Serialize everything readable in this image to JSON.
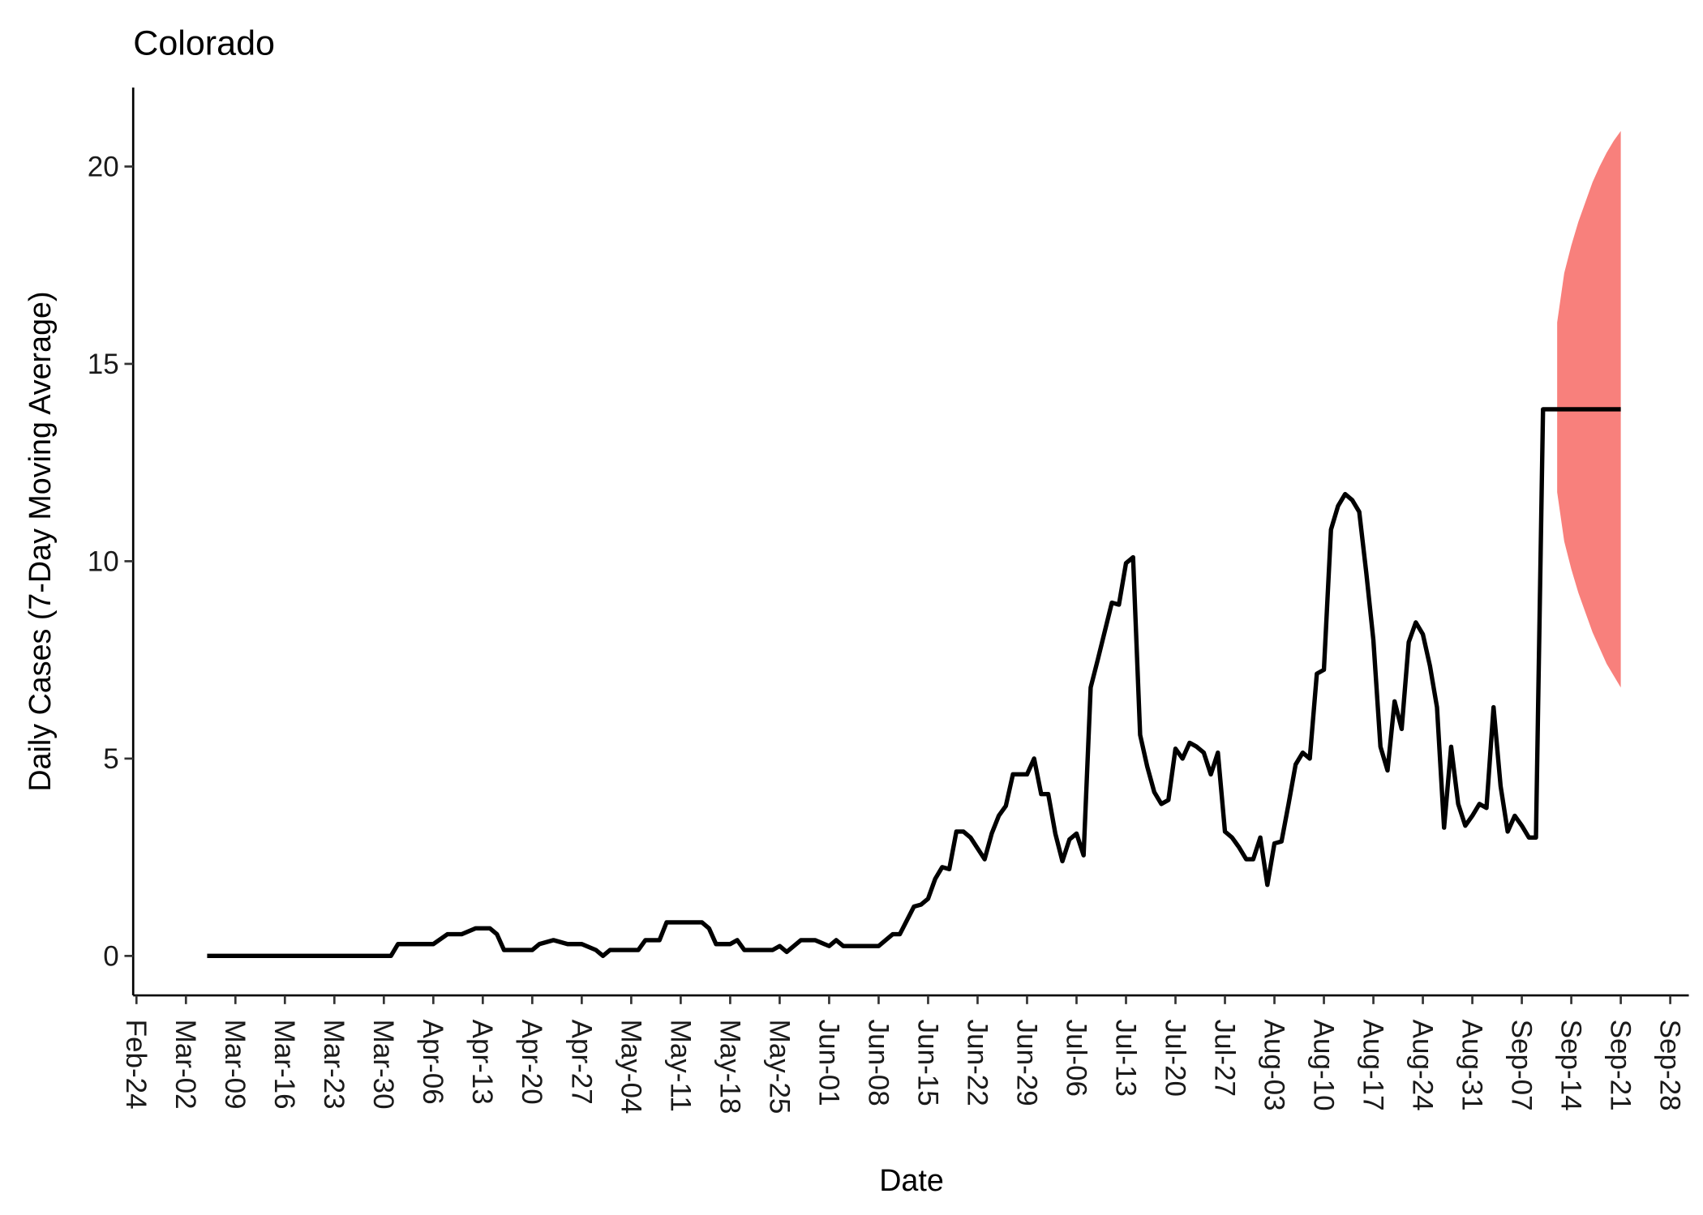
{
  "chart_data": {
    "type": "line",
    "title": "Colorado",
    "xlabel": "Date",
    "ylabel": "Daily Cases (7-Day Moving Average)",
    "xticks": [
      "Feb-24",
      "Mar-02",
      "Mar-09",
      "Mar-16",
      "Mar-23",
      "Mar-30",
      "Apr-06",
      "Apr-13",
      "Apr-20",
      "Apr-27",
      "May-04",
      "May-11",
      "May-18",
      "May-25",
      "Jun-01",
      "Jun-08",
      "Jun-15",
      "Jun-22",
      "Jun-29",
      "Jul-06",
      "Jul-13",
      "Jul-20",
      "Jul-27",
      "Aug-03",
      "Aug-10",
      "Aug-17",
      "Aug-24",
      "Aug-31",
      "Sep-07",
      "Sep-14",
      "Sep-21",
      "Sep-28"
    ],
    "xlim": [
      "Feb-24",
      "Sep-28"
    ],
    "ylim": [
      -1,
      22
    ],
    "yticks": [
      0,
      5,
      10,
      15,
      20
    ],
    "grid": false,
    "series": [
      {
        "color": "#000000",
        "x": [
          "Mar-05",
          "Mar-31",
          "Apr-01",
          "Apr-06",
          "Apr-08",
          "Apr-10",
          "Apr-12",
          "Apr-14",
          "Apr-15",
          "Apr-16",
          "Apr-20",
          "Apr-21",
          "Apr-23",
          "Apr-25",
          "Apr-27",
          "Apr-29",
          "Apr-30",
          "May-01",
          "May-05",
          "May-06",
          "May-08",
          "May-09",
          "May-14",
          "May-15",
          "May-16",
          "May-18",
          "May-19",
          "May-20",
          "May-24",
          "May-25",
          "May-26",
          "May-28",
          "May-30",
          "Jun-01",
          "Jun-02",
          "Jun-03",
          "Jun-08",
          "Jun-10",
          "Jun-11",
          "Jun-12",
          "Jun-13",
          "Jun-14",
          "Jun-15",
          "Jun-16",
          "Jun-17",
          "Jun-18",
          "Jun-19",
          "Jun-20",
          "Jun-21",
          "Jun-23",
          "Jun-24",
          "Jun-25",
          "Jun-26",
          "Jun-27",
          "Jun-29",
          "Jun-30",
          "Jul-01",
          "Jul-02",
          "Jul-03",
          "Jul-04",
          "Jul-05",
          "Jul-06",
          "Jul-07",
          "Jul-08",
          "Jul-09",
          "Jul-11",
          "Jul-12",
          "Jul-13",
          "Jul-14",
          "Jul-15",
          "Jul-16",
          "Jul-17",
          "Jul-18",
          "Jul-19",
          "Jul-20",
          "Jul-21",
          "Jul-22",
          "Jul-23",
          "Jul-24",
          "Jul-25",
          "Jul-26",
          "Jul-27",
          "Jul-28",
          "Jul-29",
          "Jul-30",
          "Jul-31",
          "Aug-01",
          "Aug-02",
          "Aug-03",
          "Aug-04",
          "Aug-05",
          "Aug-06",
          "Aug-07",
          "Aug-08",
          "Aug-09",
          "Aug-10",
          "Aug-11",
          "Aug-12",
          "Aug-13",
          "Aug-14",
          "Aug-15",
          "Aug-16",
          "Aug-17",
          "Aug-18",
          "Aug-19",
          "Aug-20",
          "Aug-21",
          "Aug-22",
          "Aug-23",
          "Aug-24",
          "Aug-25",
          "Aug-26",
          "Aug-27",
          "Aug-28",
          "Aug-29",
          "Aug-30",
          "Aug-31",
          "Sep-01",
          "Sep-02",
          "Sep-03",
          "Sep-04",
          "Sep-05",
          "Sep-06",
          "Sep-07",
          "Sep-08",
          "Sep-09",
          "Sep-10",
          "Sep-21"
        ],
        "values": [
          0,
          0,
          0.3,
          0.3,
          0.55,
          0.55,
          0.7,
          0.7,
          0.55,
          0.15,
          0.15,
          0.3,
          0.4,
          0.3,
          0.3,
          0.15,
          0,
          0.15,
          0.15,
          0.4,
          0.4,
          0.85,
          0.85,
          0.7,
          0.3,
          0.3,
          0.4,
          0.15,
          0.15,
          0.25,
          0.1,
          0.4,
          0.4,
          0.25,
          0.4,
          0.25,
          0.25,
          0.55,
          0.55,
          0.9,
          1.25,
          1.3,
          1.45,
          1.95,
          2.25,
          2.2,
          3.15,
          3.15,
          3.0,
          2.45,
          3.1,
          3.55,
          3.8,
          4.6,
          4.6,
          5.0,
          4.1,
          4.1,
          3.1,
          2.4,
          2.95,
          3.1,
          2.55,
          6.8,
          7.5,
          8.95,
          8.9,
          9.95,
          10.1,
          5.6,
          4.8,
          4.15,
          3.85,
          3.95,
          5.25,
          5.0,
          5.4,
          5.3,
          5.15,
          4.6,
          5.15,
          3.15,
          3.0,
          2.75,
          2.45,
          2.45,
          3.0,
          1.8,
          2.85,
          2.9,
          3.85,
          4.85,
          5.15,
          5.0,
          7.15,
          7.25,
          10.8,
          11.4,
          11.7,
          11.55,
          11.25,
          9.7,
          8.0,
          5.3,
          4.7,
          6.45,
          5.75,
          7.95,
          8.45,
          8.15,
          7.35,
          6.3,
          3.25,
          5.3,
          3.85,
          3.3,
          3.55,
          3.85,
          3.75,
          6.3,
          4.3,
          3.15,
          3.55,
          3.3,
          3.0,
          3.0,
          13.85,
          13.85
        ]
      }
    ],
    "band": {
      "color": "#f8807c",
      "x": [
        "Sep-12",
        "Sep-13",
        "Sep-14",
        "Sep-15",
        "Sep-16",
        "Sep-17",
        "Sep-18",
        "Sep-19",
        "Sep-20",
        "Sep-21"
      ],
      "upper": [
        16.05,
        17.3,
        18.0,
        18.6,
        19.1,
        19.6,
        20.0,
        20.35,
        20.65,
        20.9
      ],
      "lower": [
        11.75,
        10.5,
        9.8,
        9.2,
        8.7,
        8.2,
        7.8,
        7.4,
        7.1,
        6.8
      ]
    }
  }
}
